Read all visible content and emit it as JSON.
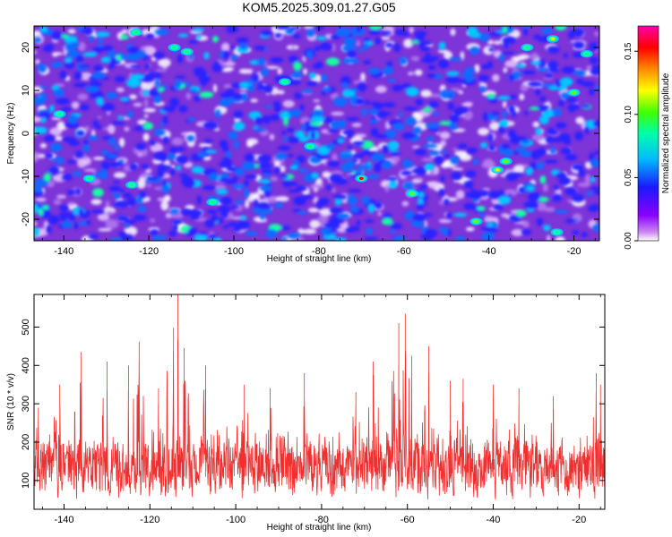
{
  "title": "KOM5.2025.309.01.27.G05",
  "chart_data": [
    {
      "type": "heatmap",
      "title": "KOM5.2025.309.01.27.G05",
      "xlabel": "Height of straight line (km)",
      "ylabel": "Frequency (Hz)",
      "xlim": [
        -147,
        -14
      ],
      "ylim": [
        -25,
        25
      ],
      "x_ticks": [
        -140,
        -120,
        -100,
        -80,
        -60,
        -40,
        -20
      ],
      "x_tick_labels": [
        "-140",
        "-120",
        "-100",
        "-80",
        "-60",
        "-40",
        "-20"
      ],
      "y_ticks": [
        -20,
        -10,
        0,
        10,
        20
      ],
      "y_tick_labels": [
        "-20",
        "-10",
        "0",
        "10",
        "20"
      ],
      "grid": false,
      "colorbar": {
        "label": "Normalized spectral amplitude",
        "range": [
          0,
          0.17
        ],
        "ticks": [
          0,
          0.05,
          0.1,
          0.15
        ],
        "tick_labels": [
          "0.00",
          "0.05",
          "0.10",
          "0.15"
        ],
        "colormap": "rainbow (white-purple-blue-cyan-green-yellow-orange-red-magenta)"
      },
      "hotspots": [
        {
          "x": -123,
          "y": 23.5,
          "value": 0.09
        },
        {
          "x": -114,
          "y": 20,
          "value": 0.08
        },
        {
          "x": -111,
          "y": 19,
          "value": 0.07
        },
        {
          "x": -88,
          "y": 12,
          "value": 0.06
        },
        {
          "x": -70,
          "y": -10.5,
          "value": 0.17
        },
        {
          "x": -58,
          "y": -14,
          "value": 0.1
        },
        {
          "x": -43,
          "y": -20.5,
          "value": 0.11
        },
        {
          "x": -38,
          "y": -8.5,
          "value": 0.13
        },
        {
          "x": -36,
          "y": -6.5,
          "value": 0.1
        },
        {
          "x": -25,
          "y": 22,
          "value": 0.12
        },
        {
          "x": -24,
          "y": -23,
          "value": 0.09
        },
        {
          "x": -20,
          "y": 9.5,
          "value": 0.1
        },
        {
          "x": -141,
          "y": 4.5,
          "value": 0.07
        },
        {
          "x": -134,
          "y": -10.5,
          "value": 0.07
        },
        {
          "x": -124,
          "y": -12,
          "value": 0.07
        },
        {
          "x": -105,
          "y": -16,
          "value": 0.06
        },
        {
          "x": -82,
          "y": -3,
          "value": 0.07
        },
        {
          "x": -31,
          "y": 20,
          "value": 0.07
        },
        {
          "x": -17,
          "y": 18.5,
          "value": 0.08
        }
      ]
    },
    {
      "type": "line",
      "xlabel": "Height of straight line (km)",
      "ylabel": "SNR (10 * v/v)",
      "xlim": [
        -147,
        -14
      ],
      "ylim": [
        25,
        585
      ],
      "x_ticks": [
        -140,
        -120,
        -100,
        -80,
        -60,
        -40,
        -20
      ],
      "x_tick_labels": [
        "-140",
        "-120",
        "-100",
        "-80",
        "-60",
        "-40",
        "-20"
      ],
      "y_ticks": [
        100,
        200,
        300,
        400,
        500
      ],
      "y_tick_labels": [
        "100",
        "200",
        "300",
        "400",
        "500"
      ],
      "grid": false,
      "series": [
        {
          "name": "SNR",
          "color": "#f03030",
          "base_level": 130,
          "peaks": [
            {
              "x": -146,
              "y": 290
            },
            {
              "x": -141,
              "y": 350
            },
            {
              "x": -136,
              "y": 435
            },
            {
              "x": -130,
              "y": 410
            },
            {
              "x": -125,
              "y": 400
            },
            {
              "x": -122.5,
              "y": 462
            },
            {
              "x": -118,
              "y": 340
            },
            {
              "x": -114.5,
              "y": 498
            },
            {
              "x": -113.5,
              "y": 585
            },
            {
              "x": -112,
              "y": 445
            },
            {
              "x": -107,
              "y": 400
            },
            {
              "x": -98,
              "y": 350
            },
            {
              "x": -92,
              "y": 340
            },
            {
              "x": -84,
              "y": 380
            },
            {
              "x": -72,
              "y": 330
            },
            {
              "x": -68,
              "y": 410
            },
            {
              "x": -62,
              "y": 510
            },
            {
              "x": -60.5,
              "y": 535
            },
            {
              "x": -59,
              "y": 425
            },
            {
              "x": -55,
              "y": 450
            },
            {
              "x": -50,
              "y": 360
            },
            {
              "x": -47,
              "y": 365
            },
            {
              "x": -40,
              "y": 350
            },
            {
              "x": -34,
              "y": 340
            },
            {
              "x": -26,
              "y": 320
            },
            {
              "x": -16,
              "y": 380
            },
            {
              "x": -15,
              "y": 350
            }
          ]
        }
      ]
    }
  ]
}
